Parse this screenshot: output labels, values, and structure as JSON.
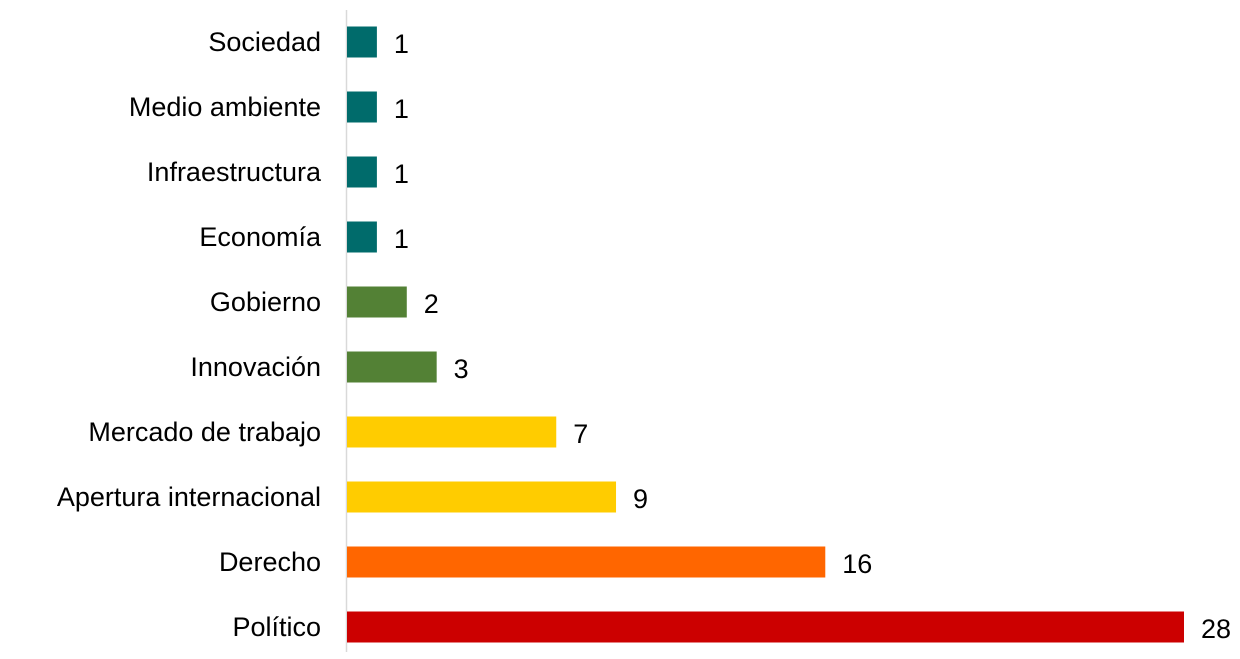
{
  "chart_data": {
    "type": "bar",
    "orientation": "horizontal",
    "title": "",
    "xlabel": "",
    "ylabel": "",
    "categories": [
      "Sociedad",
      "Medio ambiente",
      "Infraestructura",
      "Economía",
      "Gobierno",
      "Innovación",
      "Mercado de trabajo",
      "Apertura internacional",
      "Derecho",
      "Político"
    ],
    "values": [
      1,
      1,
      1,
      1,
      2,
      3,
      7,
      9,
      16,
      28
    ],
    "bar_colors": [
      "#006B6B",
      "#006B6B",
      "#006B6B",
      "#006B6B",
      "#538135",
      "#538135",
      "#FFCC00",
      "#FFCC00",
      "#FF6600",
      "#CC0000"
    ],
    "xlim": [
      0,
      28
    ],
    "data_labels": true,
    "grid": false,
    "legend": "none"
  }
}
